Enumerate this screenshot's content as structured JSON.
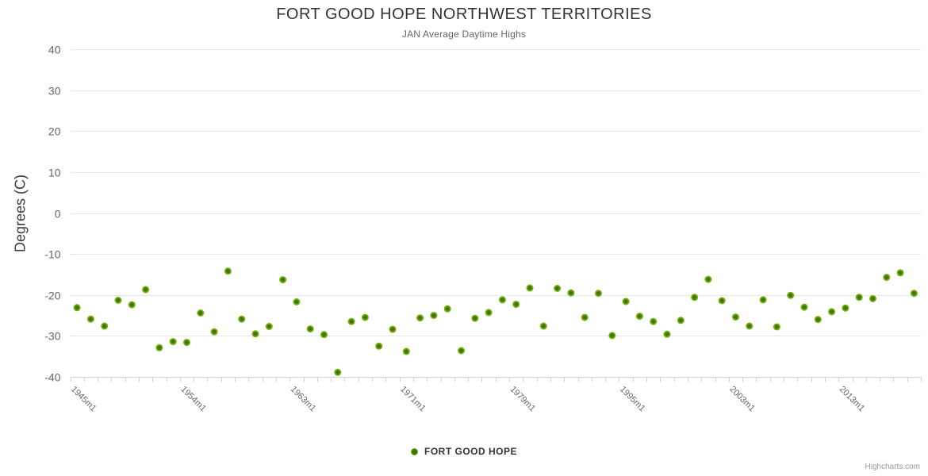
{
  "page": {
    "background": "#ffffff"
  },
  "chart_data": {
    "type": "scatter",
    "title": "FORT GOOD HOPE NORTHWEST TERRITORIES",
    "subtitle": "JAN Average Daytime Highs",
    "ylabel": "Degrees (C)",
    "ylim": [
      -40,
      40
    ],
    "ytick_labels": [
      "40",
      "30",
      "20",
      "10",
      "0",
      "-10",
      "-20",
      "-30",
      "-40"
    ],
    "grid": "horizontal-only",
    "x_axis_type": "category",
    "n_categories": 62,
    "x_tick_labels": [
      {
        "index": 0,
        "label": "1945m1"
      },
      {
        "index": 8,
        "label": "1954m1"
      },
      {
        "index": 16,
        "label": "1963m1"
      },
      {
        "index": 24,
        "label": "1971m1"
      },
      {
        "index": 32,
        "label": "1979m1"
      },
      {
        "index": 40,
        "label": "1995m1"
      },
      {
        "index": 48,
        "label": "2003m1"
      },
      {
        "index": 56,
        "label": "2013m1"
      }
    ],
    "series": [
      {
        "name": "FORT GOOD HOPE",
        "marker_color_outer": "#7cb40d",
        "marker_color_inner": "#3a7404",
        "values": [
          -23.1,
          -25.9,
          -27.6,
          -21.3,
          -22.4,
          -18.7,
          -32.9,
          -31.4,
          -31.6,
          -24.4,
          -29.0,
          -14.2,
          -25.9,
          -29.5,
          -27.7,
          -16.3,
          -21.7,
          -28.3,
          -29.7,
          -38.9,
          -26.5,
          -25.5,
          -32.5,
          -28.4,
          -33.8,
          -25.6,
          -25.0,
          -23.4,
          -33.6,
          -25.7,
          -24.3,
          -21.2,
          -22.3,
          -18.3,
          -27.6,
          -18.4,
          -19.5,
          -25.5,
          -19.6,
          -29.9,
          -21.6,
          -25.2,
          -26.5,
          -29.6,
          -26.2,
          -20.6,
          -16.2,
          -21.4,
          -25.4,
          -27.6,
          -21.2,
          -27.8,
          -20.1,
          -23.0,
          -26.0,
          -24.1,
          -23.2,
          -20.6,
          -20.9,
          -15.7,
          -14.6,
          -19.6
        ]
      }
    ],
    "legend": {
      "position": "bottom",
      "items": [
        {
          "label": "FORT GOOD HOPE"
        }
      ]
    },
    "credits": "Highcharts.com"
  },
  "colors": {
    "title": "#333333",
    "subtitle": "#666666",
    "axis_labels": "#666666",
    "grid": "#e6e6e6",
    "axis_line": "#ccd6eb",
    "tick": "#ccd6eb",
    "legend_text": "#333333",
    "credits": "#999999",
    "marker_outer": "#7cb40d",
    "marker_inner": "#3a7404"
  }
}
